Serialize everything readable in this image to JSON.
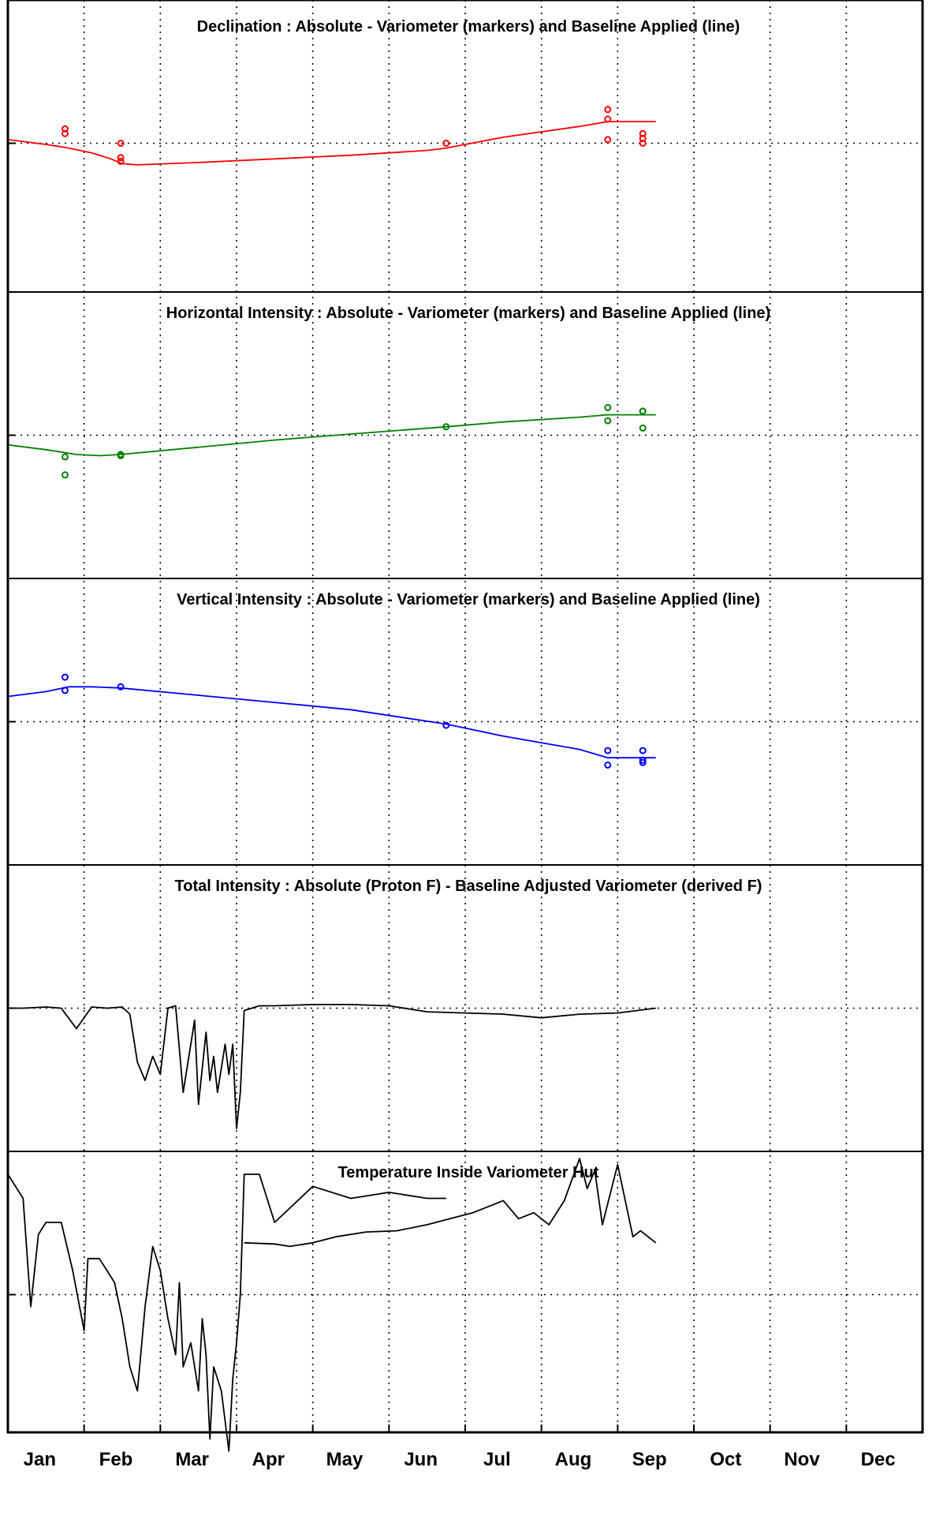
{
  "chart_data": {
    "type": "line",
    "x_unit": "month",
    "months": [
      "Jan",
      "Feb",
      "Mar",
      "Apr",
      "May",
      "Jun",
      "Jul",
      "Aug",
      "Sep",
      "Oct",
      "Nov",
      "Dec"
    ],
    "grid": true,
    "panels": [
      {
        "id": "declination",
        "title": "Declination : Absolute - Variometer (markers) and Baseline Applied (line)",
        "color": "#ff0000",
        "ylim": [
          -1,
          1
        ],
        "series": [
          {
            "kind": "markers",
            "x": [
              0.25,
              0.25,
              0.98,
              0.98,
              0.98,
              5.25,
              7.37,
              7.37,
              7.37,
              7.83,
              7.83,
              7.83
            ],
            "y": [
              0.12,
              0.08,
              0.0,
              -0.12,
              -0.15,
              0.0,
              0.28,
              0.2,
              0.03,
              0.08,
              0.04,
              0.0
            ]
          },
          {
            "kind": "line",
            "x": [
              -0.5,
              0.0,
              0.3,
              0.6,
              0.85,
              1.0,
              1.2,
              2.0,
              3.0,
              4.0,
              5.0,
              5.25,
              6.0,
              7.0,
              7.37,
              7.6,
              8.0
            ],
            "y": [
              0.03,
              -0.01,
              -0.04,
              -0.08,
              -0.13,
              -0.17,
              -0.18,
              -0.16,
              -0.13,
              -0.1,
              -0.06,
              -0.04,
              0.05,
              0.14,
              0.18,
              0.18,
              0.18
            ]
          }
        ]
      },
      {
        "id": "horizontal",
        "title": "Horizontal Intensity : Absolute - Variometer (markers) and Baseline Applied (line)",
        "color": "#008000",
        "ylim": [
          -1,
          1
        ],
        "series": [
          {
            "kind": "markers",
            "x": [
              0.25,
              0.25,
              0.98,
              0.98,
              5.25,
              7.37,
              7.37,
              7.83,
              7.83,
              7.83
            ],
            "y": [
              -0.18,
              -0.33,
              -0.16,
              -0.17,
              0.07,
              0.23,
              0.12,
              0.2,
              0.2,
              0.06
            ]
          },
          {
            "kind": "line",
            "x": [
              -0.5,
              0.0,
              0.4,
              0.7,
              0.98,
              2.0,
              3.0,
              4.0,
              5.25,
              6.0,
              7.0,
              7.37,
              7.6,
              8.0
            ],
            "y": [
              -0.08,
              -0.12,
              -0.16,
              -0.17,
              -0.16,
              -0.1,
              -0.04,
              0.01,
              0.07,
              0.11,
              0.15,
              0.17,
              0.17,
              0.17
            ]
          }
        ]
      },
      {
        "id": "vertical",
        "title": "Vertical Intensity : Absolute - Variometer (markers) and Baseline Applied (line)",
        "color": "#0000ff",
        "ylim": [
          -1,
          1
        ],
        "series": [
          {
            "kind": "markers",
            "x": [
              0.25,
              0.25,
              0.98,
              5.25,
              7.37,
              7.37,
              7.83,
              7.83,
              7.83
            ],
            "y": [
              0.37,
              0.26,
              0.29,
              -0.03,
              -0.24,
              -0.36,
              -0.24,
              -0.32,
              -0.34
            ]
          },
          {
            "kind": "line",
            "x": [
              -0.5,
              0.0,
              0.3,
              0.6,
              0.98,
              2.0,
              3.0,
              4.0,
              5.25,
              6.0,
              7.0,
              7.37,
              7.6,
              8.0
            ],
            "y": [
              0.21,
              0.25,
              0.29,
              0.29,
              0.28,
              0.22,
              0.16,
              0.1,
              -0.02,
              -0.12,
              -0.23,
              -0.3,
              -0.3,
              -0.3
            ]
          }
        ]
      },
      {
        "id": "total",
        "title": "Total Intensity : Absolute (Proton F) - Baseline Adjusted Variometer (derived F)",
        "color": "#000000",
        "ylim": [
          -1,
          1
        ],
        "series": [
          {
            "kind": "line",
            "x": [
              -0.5,
              -0.3,
              0.0,
              0.2,
              0.4,
              0.6,
              0.8,
              1.0,
              1.1,
              1.2,
              1.3,
              1.35,
              1.4,
              1.5,
              1.6,
              1.7,
              1.8,
              1.9,
              1.95,
              2.0,
              2.1,
              2.15,
              2.2,
              2.25,
              2.3,
              2.35,
              2.4,
              2.45,
              2.5,
              2.55,
              2.6,
              2.8,
              3.0,
              3.5,
              4.0,
              4.5,
              5.0,
              5.5,
              6.0,
              6.5,
              7.0,
              7.5,
              8.0
            ],
            "y": [
              0.0,
              0.0,
              0.01,
              0.0,
              -0.17,
              0.01,
              0.0,
              0.01,
              -0.05,
              -0.45,
              -0.6,
              -0.5,
              -0.4,
              -0.55,
              0.0,
              0.02,
              -0.7,
              -0.3,
              -0.1,
              -0.8,
              -0.2,
              -0.6,
              -0.4,
              -0.7,
              -0.5,
              -0.3,
              -0.55,
              -0.3,
              -1.0,
              -0.7,
              -0.02,
              0.02,
              0.02,
              0.03,
              0.03,
              0.02,
              -0.03,
              -0.04,
              -0.05,
              -0.08,
              -0.05,
              -0.04,
              0.0
            ]
          },
          {
            "kind": "line",
            "x": [
              2.6,
              3.0,
              3.2,
              3.5,
              3.8,
              4.2,
              4.6,
              5.0,
              5.3,
              5.6,
              5.8,
              6.0,
              6.2,
              6.4,
              6.6,
              6.8,
              7.0,
              7.1,
              7.2,
              7.3,
              7.5,
              7.7,
              7.8,
              8.0
            ],
            "y": [
              -1.95,
              -1.96,
              -1.98,
              -1.95,
              -1.9,
              -1.86,
              -1.85,
              -1.8,
              -1.75,
              -1.7,
              -1.65,
              -1.6,
              -1.75,
              -1.7,
              -1.8,
              -1.6,
              -1.25,
              -1.5,
              -1.35,
              -1.8,
              -1.3,
              -1.9,
              -1.85,
              -1.95
            ]
          }
        ]
      },
      {
        "id": "temperature",
        "title": "Temperature Inside Variometer Hut",
        "color": "#000000",
        "ylim": [
          -1,
          1
        ],
        "series": [
          {
            "kind": "line",
            "x": [
              -0.5,
              -0.3,
              -0.2,
              -0.1,
              0.0,
              0.2,
              0.35,
              0.5,
              0.55,
              0.6,
              0.7,
              0.8,
              0.9,
              1.0,
              1.1,
              1.2,
              1.3,
              1.4,
              1.5,
              1.6,
              1.7,
              1.75,
              1.8,
              1.9,
              2.0,
              2.05,
              2.1,
              2.15,
              2.2,
              2.3,
              2.4,
              2.45,
              2.5,
              2.55,
              2.6,
              2.8,
              3.0,
              3.5,
              4.0,
              4.5,
              5.0,
              5.25
            ],
            "y": [
              1.0,
              0.8,
              -0.1,
              0.5,
              0.6,
              0.6,
              0.2,
              -0.3,
              0.3,
              0.3,
              0.3,
              0.2,
              0.1,
              -0.2,
              -0.6,
              -0.8,
              -0.1,
              0.4,
              0.2,
              -0.2,
              -0.5,
              0.1,
              -0.6,
              -0.4,
              -0.8,
              -0.2,
              -0.5,
              -1.2,
              -0.6,
              -0.8,
              -1.3,
              -0.7,
              -0.4,
              0.0,
              1.0,
              1.0,
              0.6,
              0.9,
              0.8,
              0.85,
              0.8,
              0.8
            ]
          }
        ]
      }
    ]
  }
}
